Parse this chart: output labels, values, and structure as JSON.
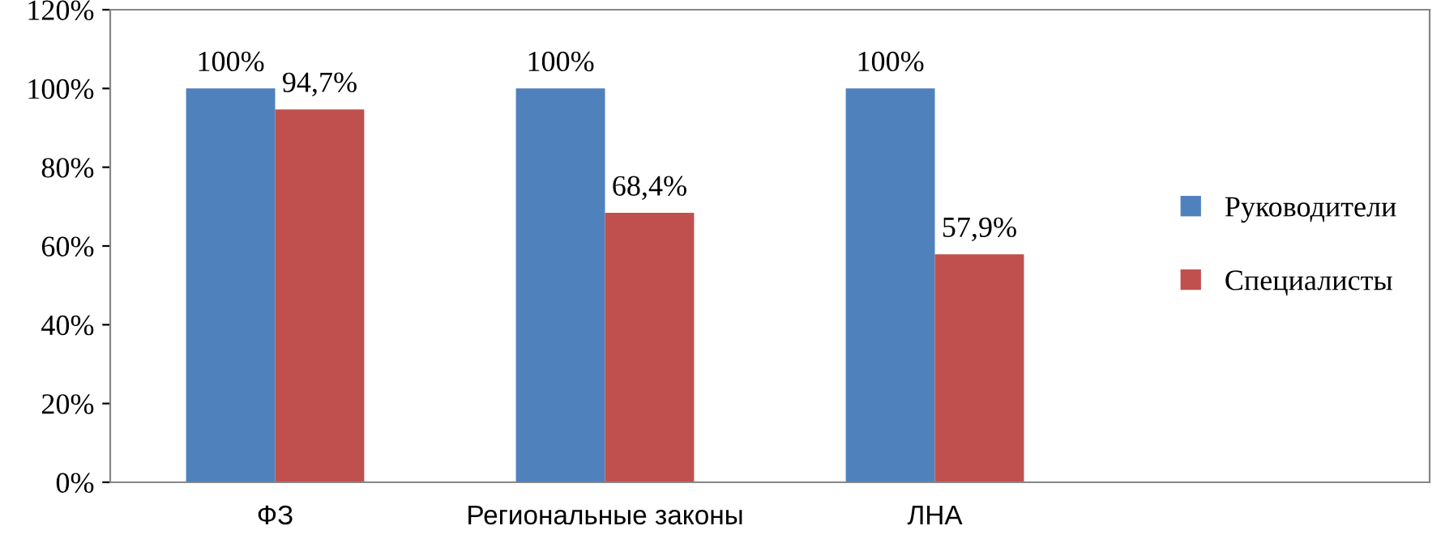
{
  "chart_data": {
    "type": "bar",
    "categories": [
      "ФЗ",
      "Региональные законы",
      "ЛНА"
    ],
    "series": [
      {
        "name": "Руководители",
        "color": "#4f81bd",
        "values": [
          100,
          100,
          100
        ],
        "value_labels": [
          "100%",
          "100%",
          "100%"
        ]
      },
      {
        "name": "Специалисты",
        "color": "#c0504d",
        "values": [
          94.7,
          68.4,
          57.9
        ],
        "value_labels": [
          "94,7%",
          "68,4%",
          "57,9%"
        ]
      }
    ],
    "ylim": [
      0,
      120
    ],
    "yticks": [
      {
        "value": 0,
        "label": "0%"
      },
      {
        "value": 20,
        "label": "20%"
      },
      {
        "value": 40,
        "label": "40%"
      },
      {
        "value": 60,
        "label": "60%"
      },
      {
        "value": 80,
        "label": "80%"
      },
      {
        "value": 100,
        "label": "100%"
      },
      {
        "value": 120,
        "label": "120%"
      }
    ],
    "grid": false,
    "legend": "right"
  }
}
